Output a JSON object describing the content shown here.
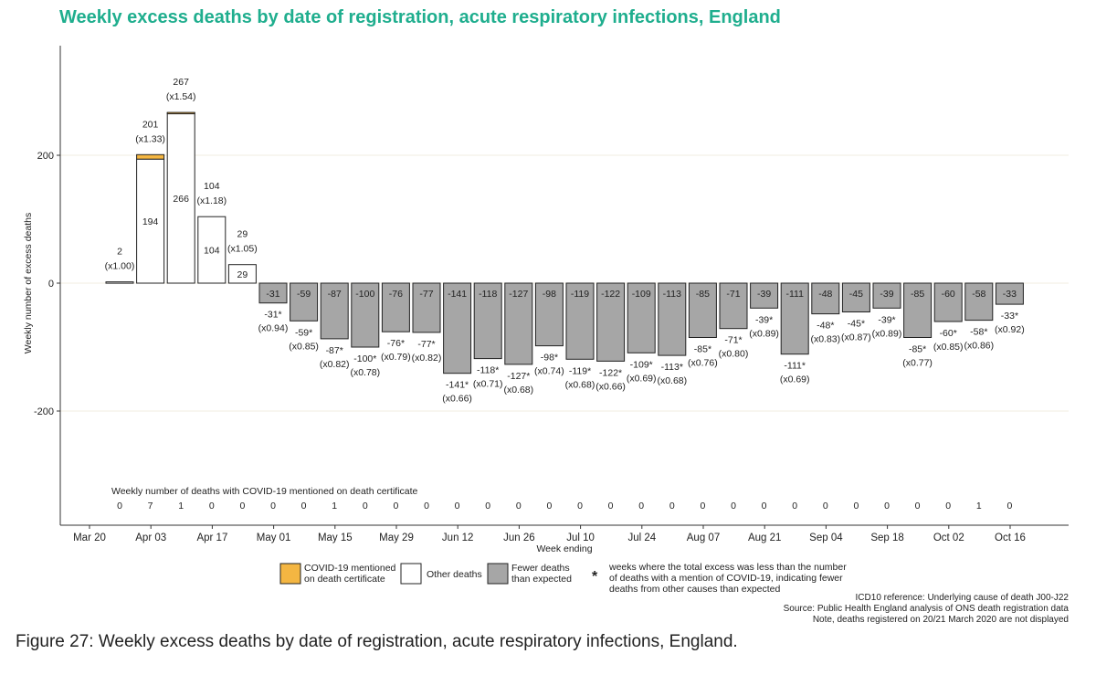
{
  "title": "Weekly excess deaths by date of registration, acute respiratory infections, England",
  "caption": "Figure 27: Weekly excess deaths by date of registration, acute respiratory infections, England.",
  "covid_row_label": "Weekly number of deaths with COVID-19 mentioned on death certificate",
  "colors": {
    "covid": "#f4b642",
    "other": "#ffffff",
    "fewer": "#a6a6a6",
    "title": "#1fae8e"
  },
  "legend": {
    "covid": "COVID-19 mentioned on death certificate",
    "other": "Other deaths",
    "fewer": "Fewer deaths than expected",
    "star_symbol": "*",
    "star": "weeks where the total excess was less than the number of deaths with a mention of COVID-19, indicating fewer deaths from other causes than expected"
  },
  "notes": [
    "ICD10 reference: Underlying cause of death J00-J22",
    "Source: Public Health England analysis of ONS death registration data",
    "Note, deaths registered on 20/21 March 2020 are not displayed"
  ],
  "chart_data": {
    "type": "bar",
    "xlabel": "Week ending",
    "ylabel": "Weekly number of excess deaths",
    "ylim": [
      -370,
      370
    ],
    "yticks": [
      -200,
      0,
      200
    ],
    "grid": true,
    "xticks": [
      "Mar 20",
      "Apr 03",
      "Apr 17",
      "May 01",
      "May 15",
      "May 29",
      "Jun 12",
      "Jun 26",
      "Jul 10",
      "Jul 24",
      "Aug 07",
      "Aug 21",
      "Sep 04",
      "Sep 18",
      "Oct 02",
      "Oct 16"
    ],
    "weeks": [
      {
        "total": 2,
        "other": 2,
        "covid": 0,
        "total_label": "2",
        "ratio": "(x1.00)",
        "inner": "",
        "covid_mentions": 0
      },
      {
        "total": 201,
        "other": 194,
        "covid": 7,
        "total_label": "201",
        "ratio": "(x1.33)",
        "inner": "194",
        "covid_mentions": 7
      },
      {
        "total": 267,
        "other": 266,
        "covid": 1,
        "total_label": "267",
        "ratio": "(x1.54)",
        "inner": "266",
        "covid_mentions": 1
      },
      {
        "total": 104,
        "other": 104,
        "covid": 0,
        "total_label": "104",
        "ratio": "(x1.18)",
        "inner": "104",
        "covid_mentions": 0
      },
      {
        "total": 29,
        "other": 29,
        "covid": 0,
        "total_label": "29",
        "ratio": "(x1.05)",
        "inner": "29",
        "covid_mentions": 0
      },
      {
        "total": -31,
        "total_label": "-31*",
        "ratio": "(x0.94)",
        "inner": "-31",
        "covid_mentions": 0
      },
      {
        "total": -59,
        "total_label": "-59*",
        "ratio": "(x0.85)",
        "inner": "-59",
        "covid_mentions": 0
      },
      {
        "total": -87,
        "total_label": "-87*",
        "ratio": "(x0.82)",
        "inner": "-87",
        "covid_mentions": 1
      },
      {
        "total": -100,
        "total_label": "-100*",
        "ratio": "(x0.78)",
        "inner": "-100",
        "covid_mentions": 0
      },
      {
        "total": -76,
        "total_label": "-76*",
        "ratio": "(x0.79)",
        "inner": "-76",
        "covid_mentions": 0
      },
      {
        "total": -77,
        "total_label": "-77*",
        "ratio": "(x0.82)",
        "inner": "-77",
        "covid_mentions": 0
      },
      {
        "total": -141,
        "total_label": "-141*",
        "ratio": "(x0.66)",
        "inner": "-141",
        "covid_mentions": 0
      },
      {
        "total": -118,
        "total_label": "-118*",
        "ratio": "(x0.71)",
        "inner": "-118",
        "covid_mentions": 0
      },
      {
        "total": -127,
        "total_label": "-127*",
        "ratio": "(x0.68)",
        "inner": "-127",
        "covid_mentions": 0
      },
      {
        "total": -98,
        "total_label": "-98*",
        "ratio": "(x0.74)",
        "inner": "-98",
        "covid_mentions": 0
      },
      {
        "total": -119,
        "total_label": "-119*",
        "ratio": "(x0.68)",
        "inner": "-119",
        "covid_mentions": 0
      },
      {
        "total": -122,
        "total_label": "-122*",
        "ratio": "(x0.66)",
        "inner": "-122",
        "covid_mentions": 0
      },
      {
        "total": -109,
        "total_label": "-109*",
        "ratio": "(x0.69)",
        "inner": "-109",
        "covid_mentions": 0
      },
      {
        "total": -113,
        "total_label": "-113*",
        "ratio": "(x0.68)",
        "inner": "-113",
        "covid_mentions": 0
      },
      {
        "total": -85,
        "total_label": "-85*",
        "ratio": "(x0.76)",
        "inner": "-85",
        "covid_mentions": 0
      },
      {
        "total": -71,
        "total_label": "-71*",
        "ratio": "(x0.80)",
        "inner": "-71",
        "covid_mentions": 0
      },
      {
        "total": -39,
        "total_label": "-39*",
        "ratio": "(x0.89)",
        "inner": "-39",
        "covid_mentions": 0
      },
      {
        "total": -111,
        "total_label": "-111*",
        "ratio": "(x0.69)",
        "inner": "-111",
        "covid_mentions": 0
      },
      {
        "total": -48,
        "total_label": "-48*",
        "ratio": "(x0.83)",
        "inner": "-48",
        "covid_mentions": 0
      },
      {
        "total": -45,
        "total_label": "-45*",
        "ratio": "(x0.87)",
        "inner": "-45",
        "covid_mentions": 0
      },
      {
        "total": -39,
        "total_label": "-39*",
        "ratio": "(x0.89)",
        "inner": "-39",
        "covid_mentions": 0
      },
      {
        "total": -85,
        "total_label": "-85*",
        "ratio": "(x0.77)",
        "inner": "-85",
        "covid_mentions": 0
      },
      {
        "total": -60,
        "total_label": "-60*",
        "ratio": "(x0.85)",
        "inner": "-60",
        "covid_mentions": 0
      },
      {
        "total": -58,
        "total_label": "-58*",
        "ratio": "(x0.86)",
        "inner": "-58",
        "covid_mentions": 1
      },
      {
        "total": -33,
        "total_label": "-33*",
        "ratio": "(x0.92)",
        "inner": "-33",
        "covid_mentions": 0
      }
    ]
  }
}
